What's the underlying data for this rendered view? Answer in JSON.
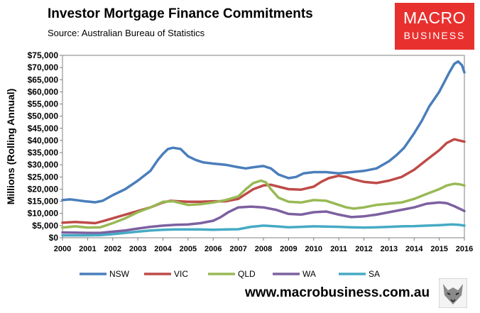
{
  "header": {
    "title": "Investor Mortgage Finance Commitments",
    "subtitle": "Source: Australian Bureau of Statistics"
  },
  "logo": {
    "line1": "MACRO",
    "line2": "BUSINESS",
    "color": "#e8312f"
  },
  "footer": {
    "url": "www.macrobusiness.com.au"
  },
  "chart_data": {
    "type": "line",
    "title": "Investor Mortgage Finance Commitments",
    "ylabel": "Millions (Rolling Annual)",
    "xlabel": "",
    "xlim": [
      2000,
      2016
    ],
    "ylim": [
      0,
      75000
    ],
    "grid": false,
    "legend": "bottom",
    "x_ticks": [
      "2000",
      "2001",
      "2002",
      "2003",
      "2004",
      "2005",
      "2006",
      "2007",
      "2008",
      "2009",
      "2010",
      "2011",
      "2012",
      "2013",
      "2014",
      "2015",
      "2016"
    ],
    "y_ticks": [
      "$0",
      "$5,000",
      "$10,000",
      "$15,000",
      "$20,000",
      "$25,000",
      "$30,000",
      "$35,000",
      "$40,000",
      "$45,000",
      "$50,000",
      "$55,000",
      "$60,000",
      "$65,000",
      "$70,000",
      "$75,000"
    ],
    "series": [
      {
        "name": "NSW",
        "color": "#4a7ebb",
        "points": [
          [
            2000,
            15500
          ],
          [
            2000.3,
            15800
          ],
          [
            2000.6,
            15400
          ],
          [
            2000.9,
            15000
          ],
          [
            2001.1,
            14800
          ],
          [
            2001.3,
            14600
          ],
          [
            2001.6,
            15200
          ],
          [
            2002,
            17500
          ],
          [
            2002.5,
            20000
          ],
          [
            2003,
            23500
          ],
          [
            2003.5,
            27500
          ],
          [
            2003.8,
            32000
          ],
          [
            2004,
            34500
          ],
          [
            2004.2,
            36500
          ],
          [
            2004.4,
            37000
          ],
          [
            2004.7,
            36500
          ],
          [
            2005,
            33500
          ],
          [
            2005.3,
            32000
          ],
          [
            2005.6,
            31000
          ],
          [
            2006,
            30500
          ],
          [
            2006.5,
            30000
          ],
          [
            2007,
            29000
          ],
          [
            2007.3,
            28500
          ],
          [
            2007.6,
            29000
          ],
          [
            2008,
            29500
          ],
          [
            2008.3,
            28500
          ],
          [
            2008.6,
            26000
          ],
          [
            2009,
            24500
          ],
          [
            2009.3,
            25000
          ],
          [
            2009.6,
            26500
          ],
          [
            2010,
            27000
          ],
          [
            2010.5,
            27000
          ],
          [
            2011,
            26500
          ],
          [
            2011.5,
            27000
          ],
          [
            2012,
            27500
          ],
          [
            2012.5,
            28500
          ],
          [
            2013,
            31500
          ],
          [
            2013.3,
            34000
          ],
          [
            2013.6,
            37000
          ],
          [
            2014,
            43000
          ],
          [
            2014.3,
            48000
          ],
          [
            2014.6,
            54000
          ],
          [
            2015,
            60000
          ],
          [
            2015.2,
            64000
          ],
          [
            2015.4,
            68000
          ],
          [
            2015.6,
            71500
          ],
          [
            2015.75,
            72500
          ],
          [
            2015.9,
            71000
          ],
          [
            2016,
            68000
          ]
        ]
      },
      {
        "name": "VIC",
        "color": "#be4b48",
        "points": [
          [
            2000,
            6200
          ],
          [
            2000.5,
            6500
          ],
          [
            2001,
            6200
          ],
          [
            2001.3,
            6000
          ],
          [
            2001.6,
            6800
          ],
          [
            2002,
            8000
          ],
          [
            2002.5,
            9500
          ],
          [
            2003,
            11000
          ],
          [
            2003.5,
            12500
          ],
          [
            2004,
            14500
          ],
          [
            2004.3,
            15200
          ],
          [
            2004.6,
            15000
          ],
          [
            2005,
            14800
          ],
          [
            2005.5,
            14800
          ],
          [
            2006,
            15000
          ],
          [
            2006.5,
            15000
          ],
          [
            2007,
            16000
          ],
          [
            2007.3,
            18000
          ],
          [
            2007.6,
            20000
          ],
          [
            2008,
            21500
          ],
          [
            2008.3,
            21800
          ],
          [
            2008.6,
            21000
          ],
          [
            2009,
            20000
          ],
          [
            2009.5,
            19800
          ],
          [
            2010,
            21000
          ],
          [
            2010.3,
            23000
          ],
          [
            2010.6,
            24500
          ],
          [
            2011,
            25500
          ],
          [
            2011.3,
            25000
          ],
          [
            2011.6,
            24000
          ],
          [
            2012,
            23000
          ],
          [
            2012.5,
            22500
          ],
          [
            2013,
            23500
          ],
          [
            2013.5,
            25000
          ],
          [
            2014,
            28000
          ],
          [
            2014.5,
            32000
          ],
          [
            2015,
            36000
          ],
          [
            2015.3,
            39000
          ],
          [
            2015.6,
            40500
          ],
          [
            2015.8,
            40000
          ],
          [
            2016,
            39500
          ]
        ]
      },
      {
        "name": "QLD",
        "color": "#98b954",
        "points": [
          [
            2000,
            4200
          ],
          [
            2000.5,
            4700
          ],
          [
            2001,
            4200
          ],
          [
            2001.5,
            4300
          ],
          [
            2002,
            6000
          ],
          [
            2002.5,
            8000
          ],
          [
            2003,
            10500
          ],
          [
            2003.5,
            12500
          ],
          [
            2004,
            14800
          ],
          [
            2004.4,
            15000
          ],
          [
            2004.8,
            14000
          ],
          [
            2005,
            13500
          ],
          [
            2005.5,
            13800
          ],
          [
            2006,
            14500
          ],
          [
            2006.5,
            15500
          ],
          [
            2007,
            17000
          ],
          [
            2007.3,
            20000
          ],
          [
            2007.6,
            22500
          ],
          [
            2007.9,
            23500
          ],
          [
            2008.1,
            22800
          ],
          [
            2008.3,
            20000
          ],
          [
            2008.6,
            16500
          ],
          [
            2009,
            14800
          ],
          [
            2009.5,
            14500
          ],
          [
            2010,
            15500
          ],
          [
            2010.5,
            15200
          ],
          [
            2011,
            13500
          ],
          [
            2011.3,
            12500
          ],
          [
            2011.6,
            12000
          ],
          [
            2012,
            12500
          ],
          [
            2012.5,
            13500
          ],
          [
            2013,
            14000
          ],
          [
            2013.5,
            14500
          ],
          [
            2014,
            16000
          ],
          [
            2014.5,
            18000
          ],
          [
            2015,
            20000
          ],
          [
            2015.3,
            21500
          ],
          [
            2015.6,
            22200
          ],
          [
            2015.8,
            22000
          ],
          [
            2016,
            21500
          ]
        ]
      },
      {
        "name": "WA",
        "color": "#7d60a0",
        "points": [
          [
            2000,
            2200
          ],
          [
            2000.5,
            2100
          ],
          [
            2001,
            2000
          ],
          [
            2001.5,
            2000
          ],
          [
            2002,
            2500
          ],
          [
            2002.5,
            3000
          ],
          [
            2003,
            3800
          ],
          [
            2003.5,
            4500
          ],
          [
            2004,
            5000
          ],
          [
            2004.5,
            5300
          ],
          [
            2005,
            5500
          ],
          [
            2005.5,
            6000
          ],
          [
            2006,
            7000
          ],
          [
            2006.3,
            8500
          ],
          [
            2006.6,
            10500
          ],
          [
            2007,
            12500
          ],
          [
            2007.5,
            12800
          ],
          [
            2008,
            12500
          ],
          [
            2008.5,
            11500
          ],
          [
            2009,
            9800
          ],
          [
            2009.5,
            9500
          ],
          [
            2010,
            10500
          ],
          [
            2010.5,
            10800
          ],
          [
            2011,
            9500
          ],
          [
            2011.5,
            8500
          ],
          [
            2012,
            8800
          ],
          [
            2012.5,
            9500
          ],
          [
            2013,
            10500
          ],
          [
            2013.5,
            11500
          ],
          [
            2014,
            12500
          ],
          [
            2014.5,
            14000
          ],
          [
            2015,
            14500
          ],
          [
            2015.3,
            14200
          ],
          [
            2015.6,
            13000
          ],
          [
            2015.9,
            11500
          ],
          [
            2016,
            11000
          ]
        ]
      },
      {
        "name": "SA",
        "color": "#46aac5",
        "points": [
          [
            2000,
            1000
          ],
          [
            2000.5,
            1000
          ],
          [
            2001,
            1000
          ],
          [
            2001.5,
            1100
          ],
          [
            2002,
            1500
          ],
          [
            2002.5,
            2000
          ],
          [
            2003,
            2500
          ],
          [
            2003.5,
            3000
          ],
          [
            2004,
            3300
          ],
          [
            2004.5,
            3400
          ],
          [
            2005,
            3400
          ],
          [
            2005.5,
            3400
          ],
          [
            2006,
            3300
          ],
          [
            2006.5,
            3400
          ],
          [
            2007,
            3500
          ],
          [
            2007.5,
            4500
          ],
          [
            2008,
            5000
          ],
          [
            2008.5,
            4700
          ],
          [
            2009,
            4300
          ],
          [
            2009.5,
            4500
          ],
          [
            2010,
            4700
          ],
          [
            2010.5,
            4600
          ],
          [
            2011,
            4500
          ],
          [
            2011.5,
            4300
          ],
          [
            2012,
            4200
          ],
          [
            2012.5,
            4300
          ],
          [
            2013,
            4500
          ],
          [
            2013.5,
            4700
          ],
          [
            2014,
            4800
          ],
          [
            2014.5,
            5000
          ],
          [
            2015,
            5200
          ],
          [
            2015.5,
            5500
          ],
          [
            2015.8,
            5300
          ],
          [
            2016,
            5000
          ]
        ]
      }
    ]
  }
}
